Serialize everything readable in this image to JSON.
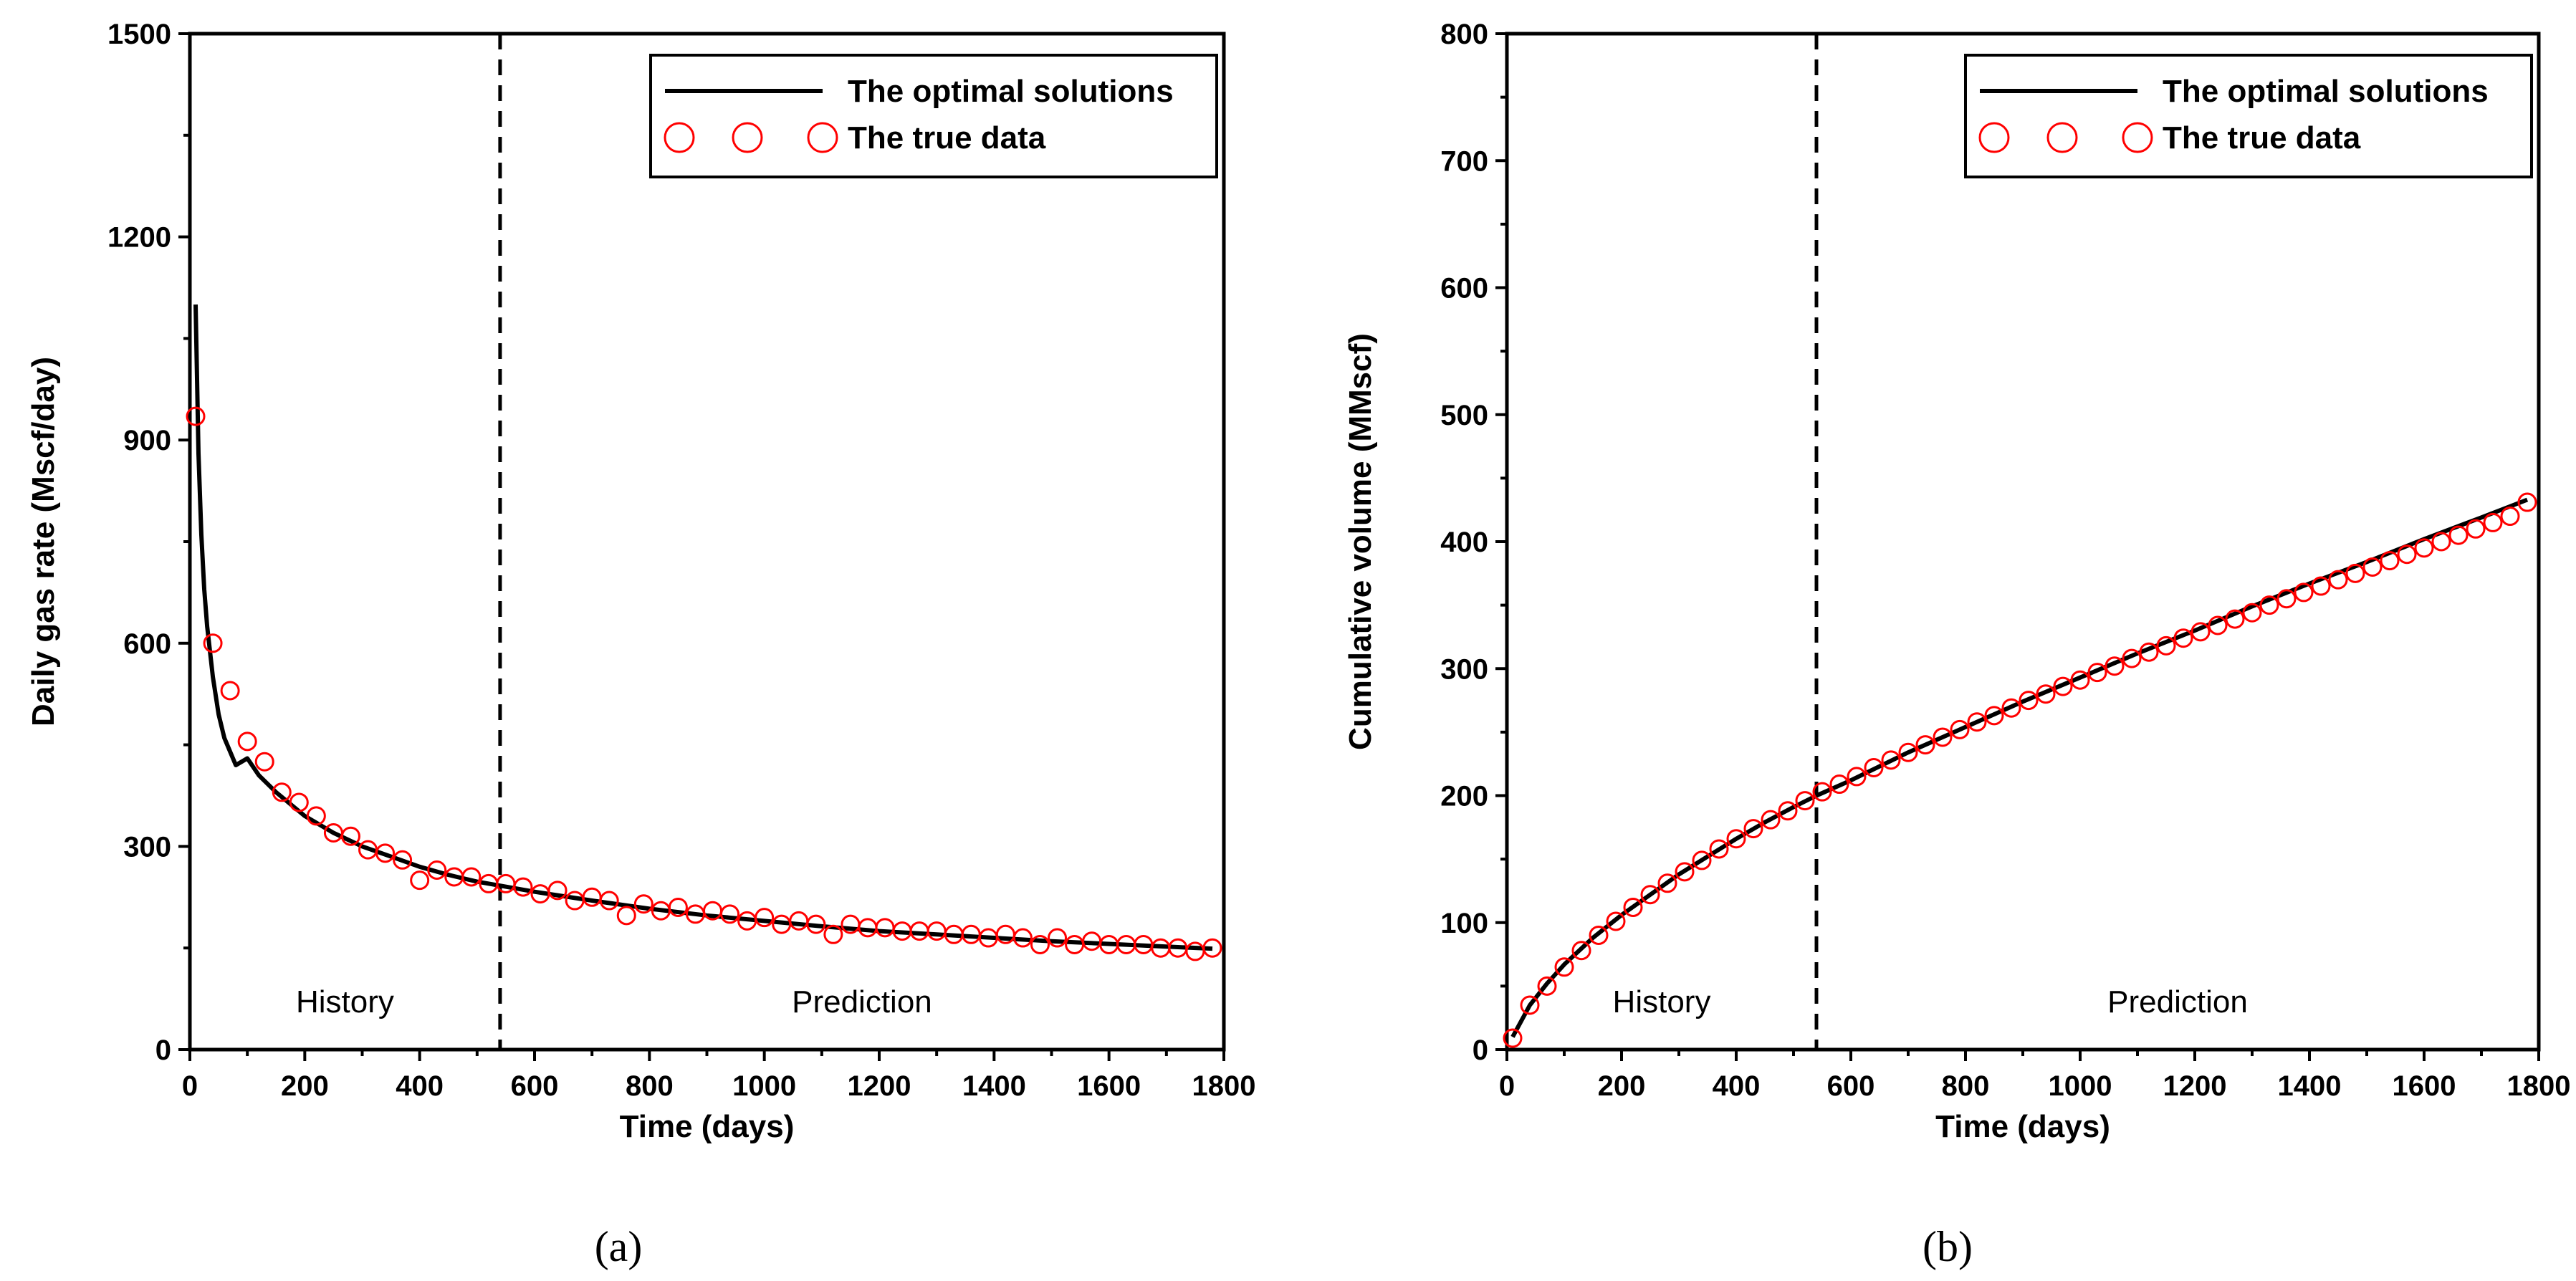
{
  "chart_data": [
    {
      "type": "line",
      "panel_label": "(a)",
      "xlabel": "Time (days)",
      "ylabel": "Daily gas rate (Mscf/day)",
      "xlim": [
        0,
        1800
      ],
      "ylim": [
        0,
        1500
      ],
      "xticks": [
        0,
        200,
        400,
        600,
        800,
        1000,
        1200,
        1400,
        1600,
        1800
      ],
      "yticks": [
        0,
        300,
        600,
        900,
        1200,
        1500
      ],
      "xtick_labels": [
        "0",
        "200",
        "400",
        "600",
        "800",
        "1000",
        "1200",
        "1400",
        "1600",
        "1800"
      ],
      "ytick_labels": [
        "0",
        "300",
        "600",
        "900",
        "1200",
        "1500"
      ],
      "divider_x": 540,
      "regions": [
        "History",
        "Prediction"
      ],
      "legend": {
        "placement": "top-right",
        "line_label": "The optimal solutions",
        "marker_label": "The true data"
      },
      "series": [
        {
          "name": "The optimal solutions",
          "style": "line",
          "x": [
            10,
            15,
            20,
            25,
            30,
            40,
            50,
            60,
            80,
            100,
            120,
            150,
            200,
            250,
            300,
            350,
            400,
            450,
            500,
            540,
            600,
            700,
            800,
            900,
            1000,
            1100,
            1200,
            1300,
            1400,
            1500,
            1600,
            1700,
            1780
          ],
          "y": [
            1100,
            880,
            760,
            680,
            625,
            550,
            495,
            460,
            420,
            430,
            405,
            380,
            345,
            320,
            300,
            285,
            270,
            258,
            248,
            242,
            233,
            220,
            208,
            198,
            190,
            182,
            175,
            170,
            165,
            160,
            156,
            152,
            149
          ]
        },
        {
          "name": "The true data",
          "style": "markers",
          "x": [
            10,
            40,
            70,
            100,
            130,
            160,
            190,
            220,
            250,
            280,
            310,
            340,
            370,
            400,
            430,
            460,
            490,
            520,
            550,
            580,
            610,
            640,
            670,
            700,
            730,
            760,
            790,
            820,
            850,
            880,
            910,
            940,
            970,
            1000,
            1030,
            1060,
            1090,
            1120,
            1150,
            1180,
            1210,
            1240,
            1270,
            1300,
            1330,
            1360,
            1390,
            1420,
            1450,
            1480,
            1510,
            1540,
            1570,
            1600,
            1630,
            1660,
            1690,
            1720,
            1750,
            1780
          ],
          "y": [
            935,
            600,
            530,
            455,
            425,
            380,
            365,
            345,
            320,
            315,
            295,
            290,
            280,
            250,
            265,
            255,
            255,
            245,
            245,
            240,
            230,
            235,
            220,
            225,
            220,
            198,
            215,
            205,
            210,
            200,
            205,
            200,
            190,
            195,
            185,
            190,
            185,
            170,
            185,
            180,
            180,
            175,
            175,
            175,
            170,
            170,
            165,
            170,
            165,
            155,
            165,
            155,
            160,
            155,
            155,
            155,
            150,
            150,
            145,
            150
          ]
        }
      ]
    },
    {
      "type": "line",
      "panel_label": "(b)",
      "xlabel": "Time (days)",
      "ylabel": "Cumulative volume (MMscf)",
      "xlim": [
        0,
        1800
      ],
      "ylim": [
        0,
        800
      ],
      "xticks": [
        0,
        200,
        400,
        600,
        800,
        1000,
        1200,
        1400,
        1600,
        1800
      ],
      "yticks": [
        0,
        100,
        200,
        300,
        400,
        500,
        600,
        700,
        800
      ],
      "xtick_labels": [
        "0",
        "200",
        "400",
        "600",
        "800",
        "1000",
        "1200",
        "1400",
        "1600",
        "1800"
      ],
      "ytick_labels": [
        "0",
        "100",
        "200",
        "300",
        "400",
        "500",
        "600",
        "700",
        "800"
      ],
      "divider_x": 540,
      "regions": [
        "History",
        "Prediction"
      ],
      "legend": {
        "placement": "top-right",
        "line_label": "The optimal solutions",
        "marker_label": "The true data"
      },
      "series": [
        {
          "name": "The optimal solutions",
          "style": "line",
          "x": [
            10,
            40,
            70,
            100,
            150,
            200,
            250,
            300,
            350,
            400,
            450,
            500,
            540,
            600,
            700,
            800,
            900,
            1000,
            1100,
            1200,
            1300,
            1400,
            1500,
            1600,
            1700,
            1780
          ],
          "y": [
            10,
            35,
            52,
            67,
            88,
            106,
            122,
            138,
            152,
            166,
            179,
            191,
            200,
            212,
            234,
            254,
            274,
            293,
            312,
            330,
            349,
            367,
            384,
            402,
            419,
            433
          ]
        },
        {
          "name": "The true data",
          "style": "markers",
          "x": [
            10,
            40,
            70,
            100,
            130,
            160,
            190,
            220,
            250,
            280,
            310,
            340,
            370,
            400,
            430,
            460,
            490,
            520,
            550,
            580,
            610,
            640,
            670,
            700,
            730,
            760,
            790,
            820,
            850,
            880,
            910,
            940,
            970,
            1000,
            1030,
            1060,
            1090,
            1120,
            1150,
            1180,
            1210,
            1240,
            1270,
            1300,
            1330,
            1360,
            1390,
            1420,
            1450,
            1480,
            1510,
            1540,
            1570,
            1600,
            1630,
            1660,
            1690,
            1720,
            1750,
            1780
          ],
          "y": [
            9,
            35,
            50,
            65,
            78,
            90,
            101,
            112,
            122,
            131,
            140,
            149,
            158,
            166,
            174,
            181,
            188,
            196,
            203,
            209,
            215,
            222,
            228,
            234,
            240,
            246,
            252,
            258,
            263,
            269,
            275,
            280,
            286,
            291,
            297,
            302,
            308,
            313,
            318,
            324,
            329,
            334,
            339,
            344,
            350,
            355,
            360,
            365,
            370,
            375,
            380,
            385,
            390,
            395,
            400,
            405,
            410,
            415,
            420,
            431
          ]
        }
      ]
    }
  ]
}
